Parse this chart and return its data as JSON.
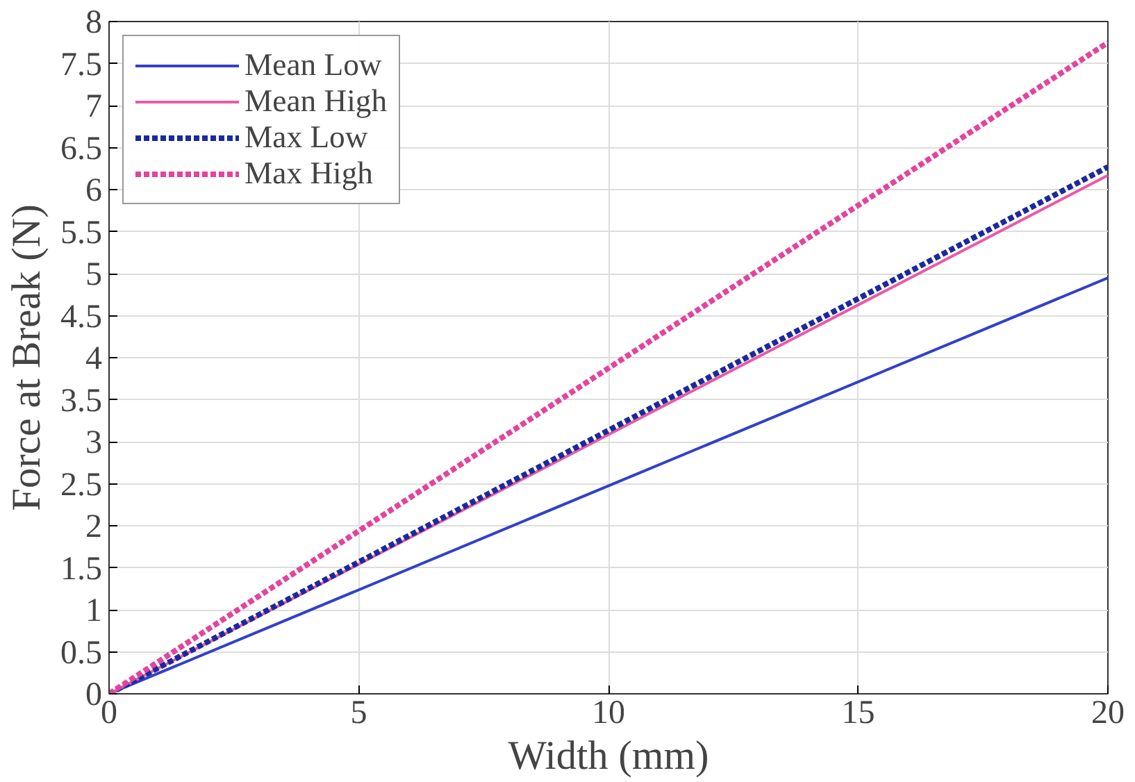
{
  "chart_data": {
    "type": "line",
    "xlabel": "Width (mm)",
    "ylabel": "Force at Break (N)",
    "x": [
      0,
      20
    ],
    "series": [
      {
        "name": "Mean Low",
        "color": "#3241c8",
        "values": [
          0,
          4.95
        ],
        "line_style": "solid"
      },
      {
        "name": "Mean High",
        "color": "#ea5aa6",
        "values": [
          0,
          6.17
        ],
        "line_style": "solid"
      },
      {
        "name": "Max Low",
        "color": "#1a2a9c",
        "values": [
          0,
          6.27
        ],
        "line_style": "dotted"
      },
      {
        "name": "Max High",
        "color": "#e2449e",
        "values": [
          0,
          7.75
        ],
        "line_style": "dotted"
      }
    ],
    "xlim": [
      0,
      20
    ],
    "xticks": [
      0,
      5,
      10,
      15,
      20
    ],
    "ylim": [
      0,
      8
    ],
    "yticks": [
      0,
      0.5,
      1,
      1.5,
      2,
      2.5,
      3,
      3.5,
      4,
      4.5,
      5,
      5.5,
      6,
      6.5,
      7,
      7.5,
      8
    ],
    "grid": true,
    "legend": "top left",
    "marker": "none"
  }
}
